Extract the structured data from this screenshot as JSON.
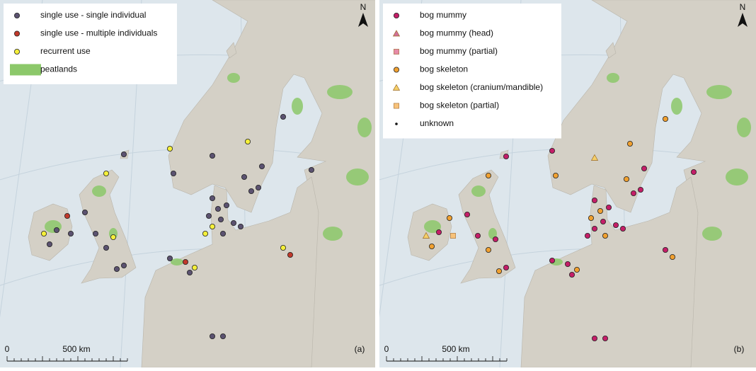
{
  "panels": [
    {
      "label": "(a)",
      "north": "N",
      "scale": {
        "start": "0",
        "end": "500 km"
      },
      "legend": [
        {
          "label": "single use - single individual",
          "shape": "circle",
          "color": "#5b5270"
        },
        {
          "label": "single use - multiple individuals",
          "shape": "circle",
          "color": "#c0392b"
        },
        {
          "label": "recurrent use",
          "shape": "circle",
          "color": "#f4ef3a"
        },
        {
          "label": "peatlands",
          "shape": "patch",
          "color": "#8cc86a"
        }
      ]
    },
    {
      "label": "(b)",
      "north": "N",
      "scale": {
        "start": "0",
        "end": "500 km"
      },
      "legend": [
        {
          "label": "bog mummy",
          "shape": "circle",
          "color": "#c41e68"
        },
        {
          "label": "bog mummy (head)",
          "shape": "triangle",
          "color": "#d0709a"
        },
        {
          "label": "bog mummy (partial)",
          "shape": "square",
          "color": "#e68aa8"
        },
        {
          "label": "bog skeleton",
          "shape": "circle",
          "color": "#f0a030"
        },
        {
          "label": "bog skeleton (cranium/mandible)",
          "shape": "triangle",
          "color": "#f5cf6a"
        },
        {
          "label": "bog skeleton (partial)",
          "shape": "square",
          "color": "#f7c27a"
        },
        {
          "label": "unknown",
          "shape": "dot",
          "color": "#111111"
        }
      ]
    }
  ]
}
